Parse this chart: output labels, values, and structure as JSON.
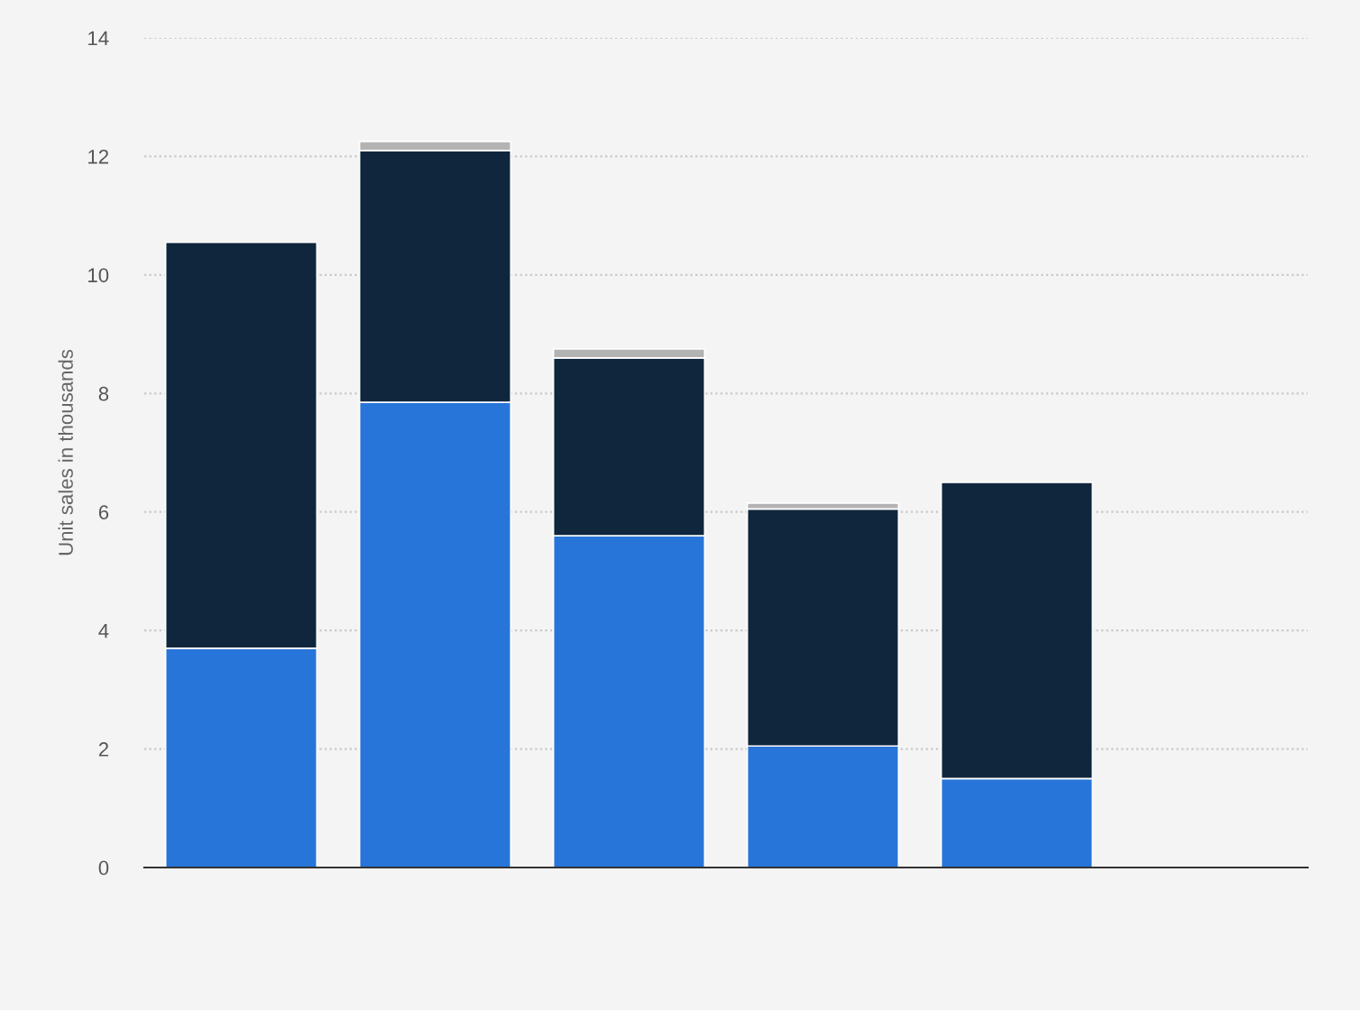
{
  "chart_data": {
    "type": "bar",
    "stacked": true,
    "ylabel": "Unit sales in thousands",
    "categories": [
      null,
      null,
      null,
      null,
      null,
      null
    ],
    "series": [
      {
        "color": "#2775d9",
        "values": [
          3.7,
          7.85,
          5.6,
          2.05,
          1.5,
          0
        ]
      },
      {
        "color": "#0f263d",
        "values": [
          6.85,
          4.25,
          3.0,
          4.0,
          5.0,
          0
        ]
      },
      {
        "color": "#b3b3b3",
        "values": [
          0,
          0.15,
          0.15,
          0.1,
          0,
          0
        ]
      }
    ],
    "ylim": [
      0,
      14
    ],
    "yticks": [
      0,
      2,
      4,
      6,
      8,
      10,
      12,
      14
    ],
    "grid": "y",
    "tick_labels": "y"
  }
}
